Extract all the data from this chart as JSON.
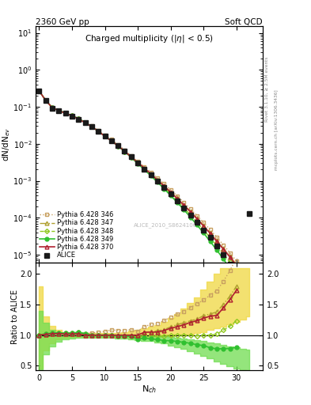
{
  "title_left": "2360 GeV pp",
  "title_right": "Soft QCD",
  "plot_title": "Charged multiplicity (|η| < 0.5)",
  "ylabel_top": "dN/dN$_{ev}$",
  "ylabel_bottom": "Ratio to ALICE",
  "xlabel": "N$_{ch}$",
  "dataset_label": "ALICE_2010_S8624100",
  "xlim": [
    -0.5,
    34
  ],
  "rivet_text": "Rivet 3.1.10, ≥ 2.5M events",
  "mcplots_text": "mcplots.cern.ch [arXiv:1306.3436]",
  "alice_x": [
    0,
    1,
    2,
    3,
    4,
    5,
    6,
    7,
    8,
    9,
    10,
    11,
    12,
    13,
    14,
    15,
    16,
    17,
    18,
    19,
    20,
    21,
    22,
    23,
    24,
    25,
    26,
    27,
    28,
    29,
    30,
    32
  ],
  "alice_y": [
    0.27,
    0.148,
    0.093,
    0.077,
    0.066,
    0.056,
    0.046,
    0.037,
    0.029,
    0.022,
    0.016,
    0.012,
    0.0088,
    0.0063,
    0.0044,
    0.0031,
    0.0021,
    0.00145,
    0.00099,
    0.00067,
    0.00044,
    0.00029,
    0.000188,
    0.00012,
    7.6e-05,
    4.7e-05,
    2.9e-05,
    1.74e-05,
    9.9e-06,
    5.5e-06,
    3e-06,
    0.00013
  ],
  "p346_x": [
    0,
    1,
    2,
    3,
    4,
    5,
    6,
    7,
    8,
    9,
    10,
    11,
    12,
    13,
    14,
    15,
    16,
    17,
    18,
    19,
    20,
    21,
    22,
    23,
    24,
    25,
    26,
    27,
    28,
    29,
    30,
    31
  ],
  "p346_y": [
    0.27,
    0.152,
    0.096,
    0.08,
    0.068,
    0.058,
    0.048,
    0.038,
    0.03,
    0.023,
    0.017,
    0.013,
    0.0095,
    0.0068,
    0.0048,
    0.0033,
    0.0024,
    0.0017,
    0.00118,
    0.00083,
    0.00057,
    0.00039,
    0.00026,
    0.000174,
    0.000115,
    7.4e-05,
    4.8e-05,
    3e-05,
    1.86e-05,
    1.13e-05,
    6.8e-06,
    4e-06
  ],
  "p347_x": [
    0,
    1,
    2,
    3,
    4,
    5,
    6,
    7,
    8,
    9,
    10,
    11,
    12,
    13,
    14,
    15,
    16,
    17,
    18,
    19,
    20,
    21,
    22,
    23,
    24,
    25,
    26,
    27,
    28,
    29,
    30,
    31
  ],
  "p347_y": [
    0.27,
    0.15,
    0.095,
    0.079,
    0.067,
    0.057,
    0.047,
    0.037,
    0.029,
    0.022,
    0.016,
    0.012,
    0.0088,
    0.0063,
    0.0044,
    0.0031,
    0.0022,
    0.00153,
    0.00106,
    0.00073,
    0.0005,
    0.00034,
    0.000226,
    0.000148,
    9.6e-05,
    6.2e-05,
    3.9e-05,
    2.4e-05,
    1.49e-05,
    9e-06,
    5.4e-06,
    3.2e-06
  ],
  "p348_x": [
    0,
    1,
    2,
    3,
    4,
    5,
    6,
    7,
    8,
    9,
    10,
    11,
    12,
    13,
    14,
    15,
    16,
    17,
    18,
    19,
    20,
    21,
    22,
    23,
    24,
    25,
    26,
    27,
    28,
    29,
    30,
    31
  ],
  "p348_y": [
    0.27,
    0.152,
    0.096,
    0.08,
    0.068,
    0.058,
    0.048,
    0.038,
    0.029,
    0.022,
    0.016,
    0.012,
    0.0087,
    0.0062,
    0.0043,
    0.003,
    0.0021,
    0.00144,
    0.00098,
    0.00066,
    0.00044,
    0.00029,
    0.000188,
    0.00012,
    7.5e-05,
    4.7e-05,
    2.9e-05,
    1.77e-05,
    1.07e-05,
    6.3e-06,
    3.7e-06,
    2.1e-06
  ],
  "p349_x": [
    0,
    1,
    2,
    3,
    4,
    5,
    6,
    7,
    8,
    9,
    10,
    11,
    12,
    13,
    14,
    15,
    16,
    17,
    18,
    19,
    20,
    21,
    22,
    23,
    24,
    25,
    26,
    27,
    28,
    29,
    30,
    31
  ],
  "p349_y": [
    0.27,
    0.151,
    0.096,
    0.08,
    0.068,
    0.058,
    0.048,
    0.038,
    0.029,
    0.022,
    0.016,
    0.012,
    0.0087,
    0.0062,
    0.0043,
    0.0029,
    0.002,
    0.00136,
    0.00092,
    0.00061,
    0.0004,
    0.00026,
    0.000166,
    0.000104,
    6.4e-05,
    3.9e-05,
    2.3e-05,
    1.35e-05,
    7.7e-06,
    4.3e-06,
    2.4e-06,
    1.3e-06
  ],
  "p370_x": [
    0,
    1,
    2,
    3,
    4,
    5,
    6,
    7,
    8,
    9,
    10,
    11,
    12,
    13,
    14,
    15,
    16,
    17,
    18,
    19,
    20,
    21,
    22,
    23,
    24,
    25,
    26,
    27,
    28,
    29,
    30,
    31
  ],
  "p370_y": [
    0.27,
    0.15,
    0.095,
    0.079,
    0.067,
    0.057,
    0.047,
    0.037,
    0.029,
    0.022,
    0.016,
    0.012,
    0.0088,
    0.0063,
    0.0044,
    0.0031,
    0.0022,
    0.00152,
    0.00104,
    0.00072,
    0.00049,
    0.00033,
    0.00022,
    0.000145,
    9.4e-05,
    6e-05,
    3.8e-05,
    2.3e-05,
    1.43e-05,
    8.7e-06,
    5.2e-06,
    3.1e-06
  ],
  "color_346": "#c8a060",
  "color_347": "#b0a030",
  "color_348": "#90c820",
  "color_349": "#30c030",
  "color_370": "#b02030",
  "color_alice": "#1a1a1a",
  "band_yellow_x": [
    0,
    1,
    2,
    3,
    4,
    5,
    6,
    7,
    8,
    9,
    10,
    11,
    12,
    13,
    14,
    15,
    16,
    17,
    18,
    19,
    20,
    21,
    22,
    23,
    24,
    25,
    26,
    27,
    28,
    29,
    30,
    31,
    32
  ],
  "band_yellow_hi": [
    1.8,
    1.3,
    1.15,
    1.08,
    1.05,
    1.03,
    1.03,
    1.03,
    1.03,
    1.03,
    1.03,
    1.03,
    1.04,
    1.05,
    1.07,
    1.09,
    1.11,
    1.14,
    1.17,
    1.22,
    1.28,
    1.35,
    1.43,
    1.52,
    1.62,
    1.75,
    1.88,
    2.0,
    2.1,
    2.1,
    2.1,
    2.1,
    2.1
  ],
  "band_yellow_lo": [
    0.45,
    0.75,
    0.87,
    0.93,
    0.96,
    0.97,
    0.97,
    0.97,
    0.97,
    0.97,
    0.97,
    0.97,
    0.97,
    0.97,
    0.97,
    0.97,
    0.97,
    0.97,
    0.97,
    0.98,
    0.98,
    0.99,
    1.0,
    1.01,
    1.03,
    1.05,
    1.08,
    1.11,
    1.14,
    1.18,
    1.22,
    1.26,
    1.3
  ],
  "band_green_x": [
    0,
    1,
    2,
    3,
    4,
    5,
    6,
    7,
    8,
    9,
    10,
    11,
    12,
    13,
    14,
    15,
    16,
    17,
    18,
    19,
    20,
    21,
    22,
    23,
    24,
    25,
    26,
    27,
    28,
    29,
    30,
    31,
    32
  ],
  "band_green_hi": [
    1.4,
    1.2,
    1.09,
    1.05,
    1.02,
    1.01,
    1.01,
    1.01,
    1.01,
    1.01,
    1.01,
    1.01,
    1.01,
    1.01,
    1.01,
    1.0,
    1.0,
    1.0,
    0.99,
    0.98,
    0.97,
    0.96,
    0.95,
    0.93,
    0.92,
    0.9,
    0.88,
    0.86,
    0.84,
    0.82,
    0.8,
    0.78,
    0.76
  ],
  "band_green_lo": [
    0.42,
    0.68,
    0.82,
    0.89,
    0.93,
    0.95,
    0.96,
    0.96,
    0.96,
    0.96,
    0.96,
    0.96,
    0.95,
    0.94,
    0.93,
    0.92,
    0.91,
    0.9,
    0.88,
    0.86,
    0.83,
    0.8,
    0.77,
    0.74,
    0.7,
    0.66,
    0.62,
    0.57,
    0.53,
    0.49,
    0.45,
    0.42,
    0.4
  ]
}
